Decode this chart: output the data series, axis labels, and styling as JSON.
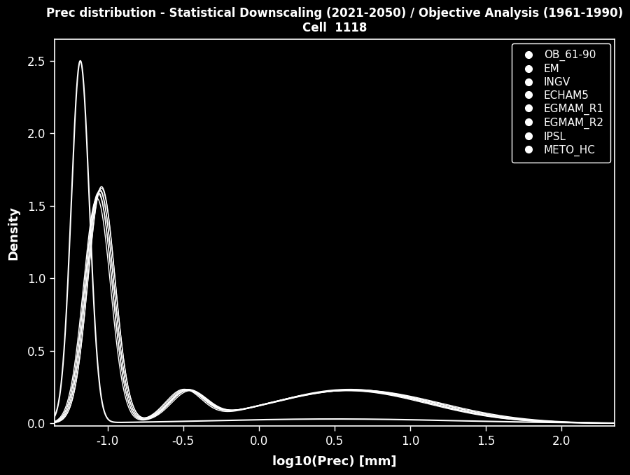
{
  "title_line1": "Prec distribution - Statistical Downscaling (2021-2050) / Objective Analysis (1961-1990)",
  "title_line2": "Cell  1118",
  "xlabel": "log10(Prec) [mm]",
  "ylabel": "Density",
  "xlim": [
    -1.35,
    2.35
  ],
  "ylim": [
    -0.02,
    2.65
  ],
  "xticks": [
    -1.0,
    -0.5,
    0.0,
    0.5,
    1.0,
    1.5,
    2.0
  ],
  "yticks": [
    0.0,
    0.5,
    1.0,
    1.5,
    2.0,
    2.5
  ],
  "background_color": "#000000",
  "text_color": "#ffffff",
  "line_color": "#ffffff",
  "legend_entries": [
    "OB_61-90",
    "EM",
    "INGV",
    "ECHAM5",
    "EGMAM_R1",
    "EGMAM_R2",
    "IPSL",
    "METO_HC"
  ],
  "title_fontsize": 12,
  "axis_label_fontsize": 13,
  "tick_fontsize": 12,
  "legend_fontsize": 11
}
